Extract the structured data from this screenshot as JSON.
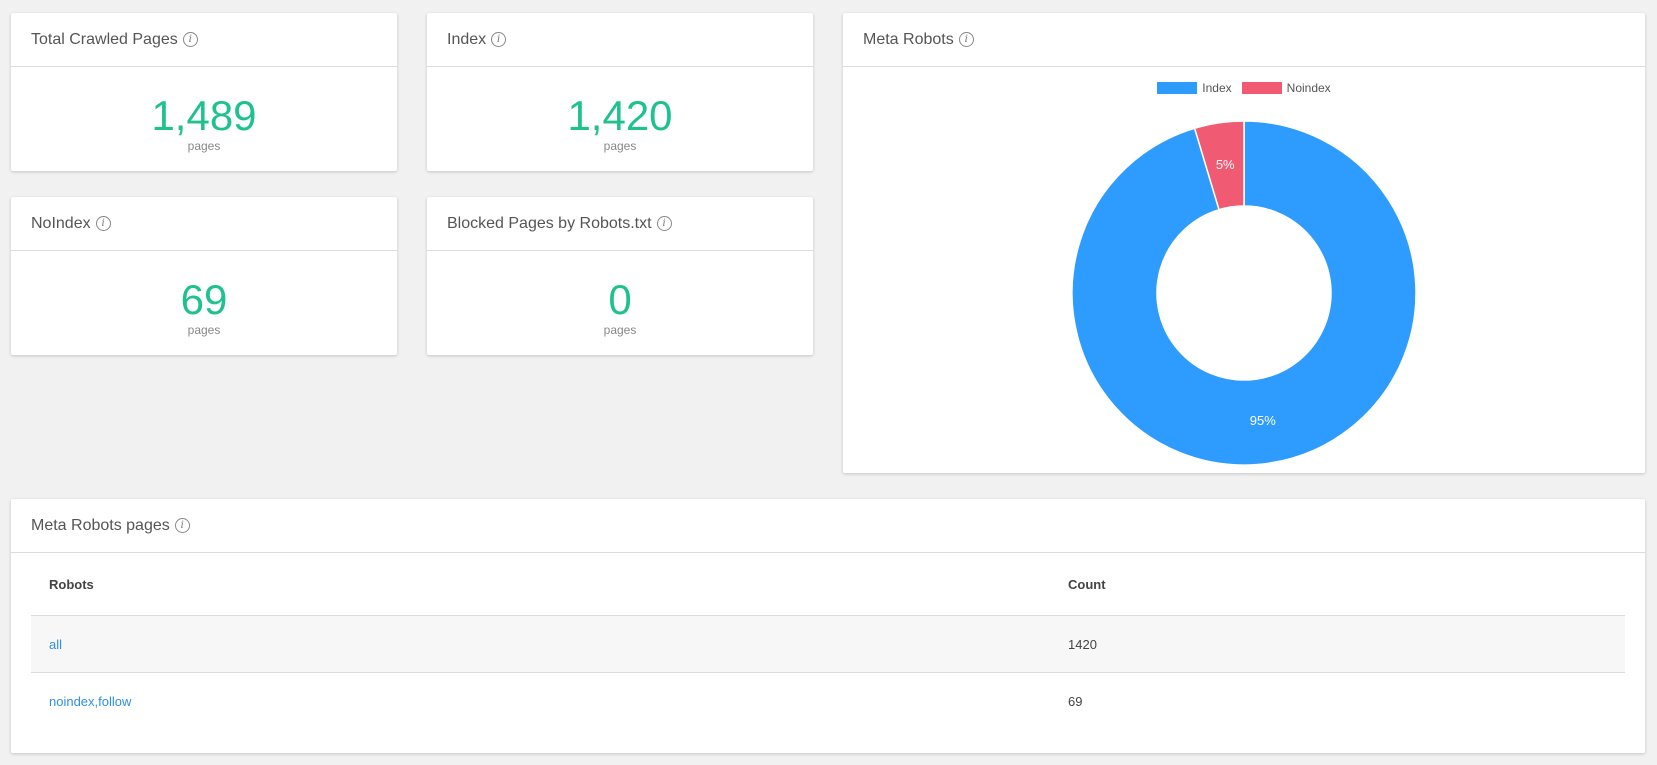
{
  "cards": {
    "total": {
      "title": "Total Crawled Pages",
      "value": "1,489",
      "unit": "pages"
    },
    "index": {
      "title": "Index",
      "value": "1,420",
      "unit": "pages"
    },
    "noindex": {
      "title": "NoIndex",
      "value": "69",
      "unit": "pages"
    },
    "blocked": {
      "title": "Blocked Pages by Robots.txt",
      "value": "0",
      "unit": "pages"
    }
  },
  "info_icon_glyph": "i",
  "meta_robots_chart": {
    "title": "Meta Robots",
    "chart_data": {
      "type": "pie",
      "donut": true,
      "categories": [
        "Index",
        "Noindex"
      ],
      "values": [
        1420,
        69
      ],
      "labels": [
        "95%",
        "5%"
      ],
      "colors": [
        "#2e9bfe",
        "#f05a72"
      ],
      "legend_position": "top"
    }
  },
  "table_card": {
    "title": "Meta Robots pages",
    "columns": [
      "Robots",
      "Count"
    ],
    "rows": [
      {
        "robots": "all",
        "count": "1420"
      },
      {
        "robots": "noindex,follow",
        "count": "69"
      }
    ]
  }
}
